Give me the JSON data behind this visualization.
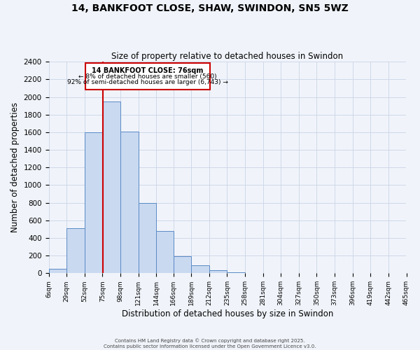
{
  "title": "14, BANKFOOT CLOSE, SHAW, SWINDON, SN5 5WZ",
  "subtitle": "Size of property relative to detached houses in Swindon",
  "xlabel": "Distribution of detached houses by size in Swindon",
  "ylabel": "Number of detached properties",
  "bin_edges": [
    6,
    29,
    52,
    75,
    98,
    121,
    144,
    166,
    189,
    212,
    235,
    258,
    281,
    304,
    327,
    350,
    373,
    396,
    419,
    442,
    465
  ],
  "bin_labels": [
    "6sqm",
    "29sqm",
    "52sqm",
    "75sqm",
    "98sqm",
    "121sqm",
    "144sqm",
    "166sqm",
    "189sqm",
    "212sqm",
    "235sqm",
    "258sqm",
    "281sqm",
    "304sqm",
    "327sqm",
    "350sqm",
    "373sqm",
    "396sqm",
    "419sqm",
    "442sqm",
    "465sqm"
  ],
  "counts": [
    50,
    510,
    1600,
    1950,
    1610,
    800,
    480,
    190,
    90,
    35,
    10,
    0,
    0,
    0,
    0,
    0,
    0,
    0,
    5,
    0
  ],
  "bar_facecolor": "#c9d9f0",
  "bar_edgecolor": "#5a8ac6",
  "grid_color": "#d0d8e8",
  "background_color": "#f0f4fa",
  "red_line_x": 76,
  "annotation_title": "14 BANKFOOT CLOSE: 76sqm",
  "annotation_line1": "← 8% of detached houses are smaller (560)",
  "annotation_line2": "92% of semi-detached houses are larger (6,743) →",
  "annotation_box_edgecolor": "#cc0000",
  "footer_line1": "Contains HM Land Registry data © Crown copyright and database right 2025.",
  "footer_line2": "Contains public sector information licensed under the Open Government Licence v3.0.",
  "ylim": [
    0,
    2400
  ],
  "yticks": [
    0,
    200,
    400,
    600,
    800,
    1000,
    1200,
    1400,
    1600,
    1800,
    2000,
    2200,
    2400
  ]
}
